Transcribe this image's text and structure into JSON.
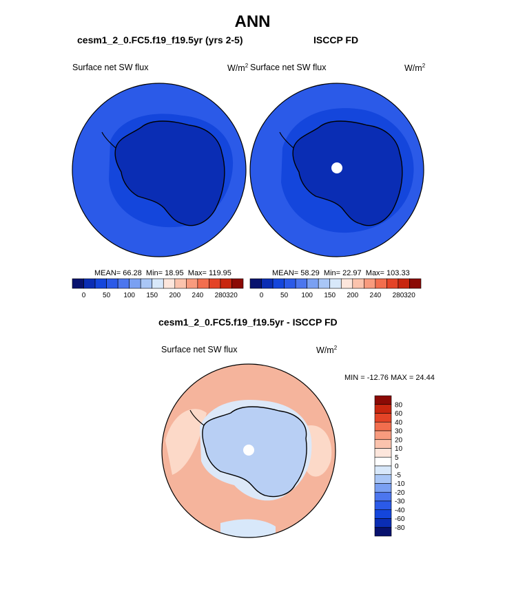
{
  "page": {
    "title": "ANN",
    "diff_title": "cesm1_2_0.FC5.f19_f19.5yr - ISCCP FD"
  },
  "colors": {
    "bg": "#ffffff",
    "coast": "#000000",
    "pole_hole": "#ffffff"
  },
  "chart_data": [
    {
      "type": "heatmap",
      "projection": "south-polar-stereographic",
      "title": "cesm1_2_0.FC5.f19_f19.5yr (yrs 2-5)",
      "left_label": "Surface net SW flux",
      "units_prefix": "W/m",
      "units_exp": "2",
      "mean_text": "MEAN=  66.28",
      "min_text": "Min=  18.95",
      "max_text": "Max= 119.95",
      "colorbar": {
        "orientation": "horizontal",
        "ticks": [
          "0",
          "50",
          "100",
          "150",
          "200",
          "240",
          "280",
          "320"
        ],
        "colors": [
          "#08126e",
          "#0a2db4",
          "#1446dc",
          "#2b5ae8",
          "#4c76ee",
          "#7aa0f2",
          "#a9c6f6",
          "#d8e8fa",
          "#fde6dc",
          "#fbc3ad",
          "#f89b7e",
          "#f26e4e",
          "#e44427",
          "#c8260f",
          "#8b0a05"
        ]
      },
      "fill_colors": {
        "ocean": "#2b5ae8",
        "ocean_inner": "#1446dc",
        "land": "#0a2db4"
      },
      "pole_hole": false
    },
    {
      "type": "heatmap",
      "projection": "south-polar-stereographic",
      "title": "ISCCP FD",
      "left_label": "Surface net SW flux",
      "units_prefix": "W/m",
      "units_exp": "2",
      "mean_text": "MEAN=  58.29",
      "min_text": "Min=  22.97",
      "max_text": "Max= 103.33",
      "colorbar": {
        "orientation": "horizontal",
        "ticks": [
          "0",
          "50",
          "100",
          "150",
          "200",
          "240",
          "280",
          "320"
        ],
        "colors": [
          "#08126e",
          "#0a2db4",
          "#1446dc",
          "#2b5ae8",
          "#4c76ee",
          "#7aa0f2",
          "#a9c6f6",
          "#d8e8fa",
          "#fde6dc",
          "#fbc3ad",
          "#f89b7e",
          "#f26e4e",
          "#e44427",
          "#c8260f",
          "#8b0a05"
        ]
      },
      "fill_colors": {
        "ocean": "#2b5ae8",
        "ocean_inner": "#1446dc",
        "land": "#0a2db4"
      },
      "pole_hole": true
    },
    {
      "type": "heatmap",
      "projection": "south-polar-stereographic",
      "title": "cesm1_2_0.FC5.f19_f19.5yr - ISCCP FD",
      "left_label": "Surface net SW flux",
      "units_prefix": "W/m",
      "units_exp": "2",
      "minmax_text": "MIN = -12.76 MAX =  24.44",
      "colorbar": {
        "orientation": "vertical",
        "ticks": [
          "80",
          "60",
          "40",
          "30",
          "20",
          "10",
          "5",
          "0",
          "-5",
          "-10",
          "-20",
          "-30",
          "-40",
          "-60",
          "-80"
        ],
        "colors": [
          "#8b0a05",
          "#c8260f",
          "#e44427",
          "#f26e4e",
          "#f89b7e",
          "#fbc3ad",
          "#fde6dc",
          "#ffffff",
          "#d8e8fa",
          "#a9c6f6",
          "#7aa0f2",
          "#4c76ee",
          "#2b5ae8",
          "#1446dc",
          "#0a2db4",
          "#08126e"
        ]
      },
      "fill_colors": {
        "ocean": "#f5b49c",
        "ocean_light": "#fcd9c8",
        "land": "#b8cff4",
        "coast_ring": "#dce8f8"
      },
      "pole_hole": true
    }
  ]
}
